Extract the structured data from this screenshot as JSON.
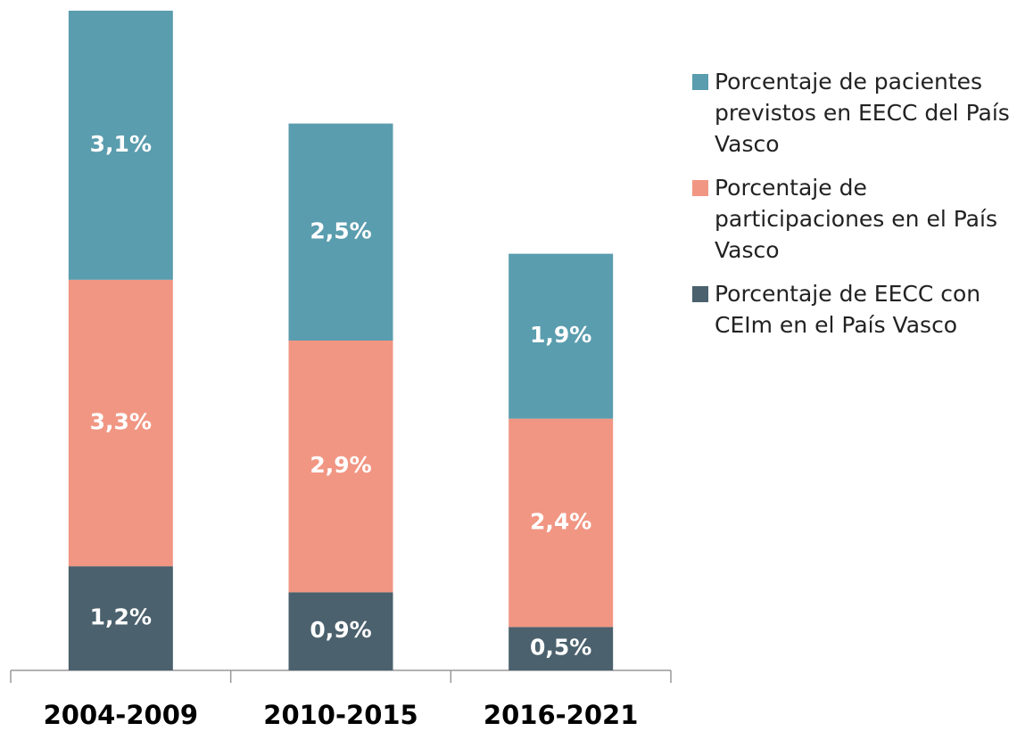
{
  "chart_data": {
    "type": "stacked_bar",
    "categories": [
      "2004-2009",
      "2010-2015",
      "2016-2021"
    ],
    "series": [
      {
        "name": "Porcentaje de EECC con CEIm en el País Vasco",
        "color": "#4b616d",
        "values": [
          1.2,
          0.9,
          0.5
        ],
        "value_labels": [
          "1,2%",
          "0,9%",
          "0,5%"
        ]
      },
      {
        "name": "Porcentaje de participaciones en el País Vasco",
        "color": "#f19683",
        "values": [
          3.3,
          2.9,
          2.4
        ],
        "value_labels": [
          "3,3%",
          "2,9%",
          "2,4%"
        ]
      },
      {
        "name": "Porcentaje de pacientes previstos en EECC del País Vasco",
        "color": "#5a9dae",
        "values": [
          3.1,
          2.5,
          1.9
        ],
        "value_labels": [
          "3,1%",
          "2,5%",
          "1,9%"
        ]
      }
    ],
    "legend": "right"
  }
}
